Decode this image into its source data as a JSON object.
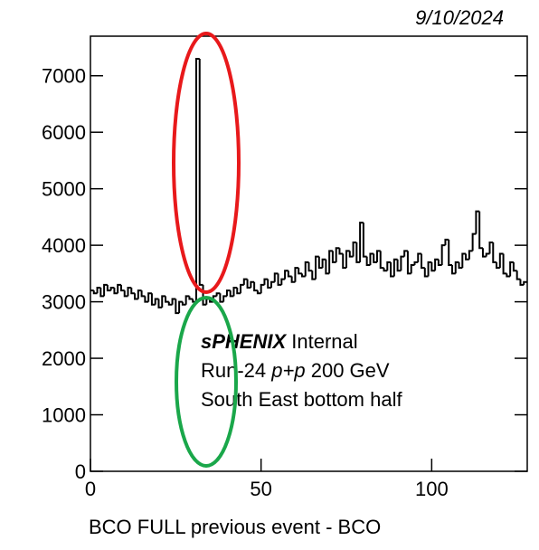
{
  "chart_data": {
    "type": "histogram",
    "date": "9/10/2024",
    "x_label": "BCO  FULL previous event - BCO",
    "annotation": {
      "experiment": "sPHENIX",
      "status": "Internal",
      "run": "Run-24",
      "system": "p+p",
      "energy": "200 GeV",
      "detector": "South East bottom half"
    },
    "bins": [
      0,
      1,
      2,
      3,
      4,
      5,
      6,
      7,
      8,
      9,
      10,
      11,
      12,
      13,
      14,
      15,
      16,
      17,
      18,
      19,
      20,
      21,
      22,
      23,
      24,
      25,
      26,
      27,
      28,
      29,
      30,
      31,
      32,
      33,
      34,
      35,
      36,
      37,
      38,
      39,
      40,
      41,
      42,
      43,
      44,
      45,
      46,
      47,
      48,
      49,
      50,
      51,
      52,
      53,
      54,
      55,
      56,
      57,
      58,
      59,
      60,
      61,
      62,
      63,
      64,
      65,
      66,
      67,
      68,
      69,
      70,
      71,
      72,
      73,
      74,
      75,
      76,
      77,
      78,
      79,
      80,
      81,
      82,
      83,
      84,
      85,
      86,
      87,
      88,
      89,
      90,
      91,
      92,
      93,
      94,
      95,
      96,
      97,
      98,
      99,
      100,
      101,
      102,
      103,
      104,
      105,
      106,
      107,
      108,
      109,
      110,
      111,
      112,
      113,
      114,
      115,
      116,
      117,
      118,
      119,
      120,
      121,
      122,
      123,
      124,
      125,
      126,
      127,
      128
    ],
    "values": [
      3200,
      3150,
      3250,
      3100,
      3300,
      3200,
      3250,
      3150,
      3300,
      3200,
      3100,
      3250,
      3150,
      3050,
      3200,
      3100,
      3000,
      3150,
      2950,
      3050,
      2900,
      3100,
      3000,
      2950,
      3050,
      2800,
      3000,
      2950,
      3100,
      3050,
      3000,
      7300,
      3300,
      2950,
      3050,
      3000,
      3100,
      3150,
      3000,
      3100,
      3200,
      3100,
      3250,
      3150,
      3300,
      3400,
      3250,
      3350,
      3200,
      3150,
      3300,
      3400,
      3250,
      3350,
      3500,
      3300,
      3400,
      3550,
      3450,
      3350,
      3600,
      3500,
      3450,
      3700,
      3550,
      3400,
      3800,
      3600,
      3750,
      3500,
      3900,
      3700,
      3950,
      3850,
      3600,
      3900,
      3800,
      4050,
      3700,
      4400,
      3800,
      3650,
      3850,
      3700,
      3900,
      3600,
      3550,
      3700,
      3450,
      3750,
      3550,
      3800,
      3900,
      3500,
      3650,
      3700,
      3850,
      3600,
      3450,
      3700,
      3550,
      3750,
      3650,
      4000,
      4100,
      3650,
      3500,
      3700,
      3600,
      3850,
      3750,
      3900,
      4200,
      4600,
      3950,
      3800,
      3850,
      4050,
      3700,
      3600,
      3850,
      3500,
      3450,
      3700,
      3550,
      3400,
      3300,
      3350
    ],
    "color": "#000000",
    "xlim": [
      0,
      128
    ],
    "ylim": [
      0,
      7700
    ],
    "xticks": [
      0,
      50,
      100
    ],
    "yticks": [
      0,
      1000,
      2000,
      3000,
      4000,
      5000,
      6000,
      7000
    ]
  }
}
